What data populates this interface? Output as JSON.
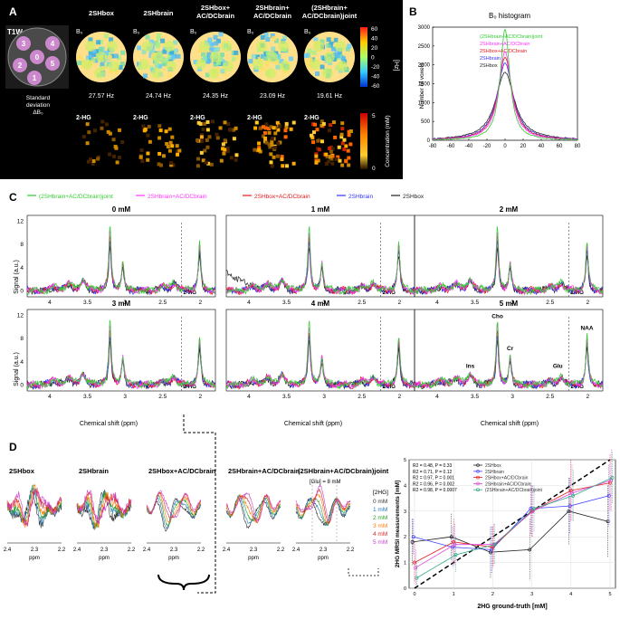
{
  "panel_labels": {
    "A": "A",
    "B": "B",
    "C": "C",
    "D": "D"
  },
  "panel_a": {
    "t1w_label": "T1W",
    "phantom_numbers": [
      "4",
      "3",
      "2",
      "0",
      "5",
      "1"
    ],
    "b0_symbol": "B₀",
    "methods": [
      "2SHbox",
      "2SHbrain",
      "2SHbox+ AC/DCbrain",
      "2SHbrain+ AC/DCbrain",
      "(2SHbrain+ AC/DCbrain)joint"
    ],
    "std_values": [
      "27.57 Hz",
      "24.74 Hz",
      "24.35 Hz",
      "23.09 Hz",
      "19.61 Hz"
    ],
    "std_label": [
      "Standard",
      "deviation",
      "ΔB₀"
    ],
    "hg_label": "2-HG",
    "colorbar1": {
      "ticks": [
        "60",
        "40",
        "20",
        "0",
        "-20",
        "-40",
        "-60"
      ],
      "unit": "[Hz]"
    },
    "colorbar2": {
      "ticks": [
        "5",
        "0"
      ],
      "label": "Concentration (mM)"
    }
  },
  "panel_c": {
    "legend": [
      "(2SHbrain+AC/DCbrain)joint",
      "2SHbrain+AC/DCbrain",
      "2SHbox+AC/DCbrain",
      "2SHbrain",
      "2SHbox"
    ],
    "ylabel": "Signal (a.u.)",
    "xlabel": "Chemical shift (ppm)",
    "subplot_titles": [
      "0 mM",
      "1 mM",
      "2 mM",
      "3 mM",
      "4 mM",
      "5 mM"
    ],
    "hg_marker": "2-HG",
    "peak_labels": {
      "cho": "Cho",
      "naa": "NAA",
      "cr": "Cr",
      "ins": "Ins",
      "glu": "Glu"
    }
  },
  "panel_d": {
    "titles": [
      "2SHbox",
      "2SHbrain",
      "2SHbox+AC/DCbrain",
      "2SHbrain+AC/DCbrain",
      "(2SHbrain+AC/DCbrain)joint"
    ],
    "xlabel": "ppm",
    "glu_label": "[Glu] = 8 mM",
    "hg_legend_title": "[2HG]",
    "hg_legend": [
      "0 mM",
      "1 mM",
      "2 mM",
      "3 mM",
      "4 mM",
      "5 mM"
    ],
    "hg_colors": [
      "#333333",
      "#1f77b4",
      "#2ca02c",
      "#ff7f0e",
      "#d62728",
      "#cc44cc"
    ]
  },
  "chart_data": [
    {
      "type": "line",
      "id": "panel_b",
      "title": "B₀ histogram",
      "xlabel": "",
      "ylabel": "Number of voxels",
      "xlim": [
        -80,
        80
      ],
      "ylim": [
        0,
        3000
      ],
      "xticks": [
        -80,
        -60,
        -40,
        -20,
        0,
        20,
        40,
        60,
        80
      ],
      "yticks": [
        0,
        500,
        1000,
        1500,
        2000,
        2500,
        3000
      ],
      "series": [
        {
          "name": "(2SHbrain+AC/DCbrain)joint",
          "color": "#33cc33",
          "peak": 2950,
          "width": 6
        },
        {
          "name": "2SHbrain+AC/DCbrain",
          "color": "#ff33ff",
          "peak": 2350,
          "width": 8
        },
        {
          "name": "2SHbox+AC/DCbrain",
          "color": "#e41a1c",
          "peak": 2200,
          "width": 9
        },
        {
          "name": "2SHbrain",
          "color": "#3333ff",
          "peak": 2050,
          "width": 10
        },
        {
          "name": "2SHbox",
          "color": "#222222",
          "peak": 1800,
          "width": 12
        }
      ],
      "legend": [
        "(2SHbrain+AC/DCbrain)joint",
        "2SHbrain+AC/DCbrain",
        "2SHbox+AC/DCbrain",
        "2SHbrain",
        "2SHbox"
      ]
    },
    {
      "type": "line",
      "id": "panel_c_spectra",
      "xlim": [
        4.3,
        1.8
      ],
      "ylim": [
        -1,
        13
      ],
      "xticks": [
        4,
        3.5,
        3,
        2.5,
        2
      ],
      "yticks": [
        0,
        4,
        8,
        12
      ],
      "hg_ppm": 2.25,
      "series_colors": [
        "#33cc33",
        "#ff33ff",
        "#e41a1c",
        "#3333ff",
        "#222222"
      ],
      "peaks_ppm": {
        "Cho": 3.2,
        "Cr": 3.03,
        "NAA": 2.01,
        "Ins": 3.56,
        "Glu": 2.35
      }
    },
    {
      "type": "line",
      "id": "panel_d_regression",
      "xlabel": "2HG ground-truth [mM]",
      "ylabel": "2HG MRSI measurements [mM]",
      "x": [
        0,
        1,
        2,
        3,
        4,
        5
      ],
      "xlim": [
        0,
        5
      ],
      "ylim": [
        0,
        5
      ],
      "xticks": [
        0,
        1,
        2,
        3,
        4,
        5
      ],
      "yticks": [
        0,
        1,
        2,
        3,
        4,
        5
      ],
      "identity_line": true,
      "series": [
        {
          "name": "2SHbox",
          "color": "#222222",
          "values": [
            1.8,
            2.0,
            1.4,
            1.5,
            3.0,
            2.6
          ],
          "error": [
            0.9,
            0.9,
            1.0,
            1.2,
            1.3,
            1.4
          ]
        },
        {
          "name": "2SHbrain",
          "color": "#4444ff",
          "values": [
            2.0,
            1.6,
            1.5,
            3.1,
            3.2,
            3.6
          ],
          "error": [
            0.7,
            0.8,
            0.9,
            1.0,
            1.1,
            1.2
          ]
        },
        {
          "name": "2SHbox+AC/DCbrain",
          "color": "#e41a1c",
          "values": [
            1.0,
            1.8,
            1.6,
            3.0,
            3.8,
            4.1
          ],
          "error": [
            0.8,
            0.9,
            0.8,
            1.0,
            1.2,
            1.1
          ]
        },
        {
          "name": "2SHbrain+AC/DCbrain",
          "color": "#dd44dd",
          "values": [
            0.8,
            1.7,
            1.7,
            3.0,
            3.7,
            4.2
          ],
          "error": [
            0.7,
            0.8,
            0.8,
            1.0,
            1.1,
            1.2
          ]
        },
        {
          "name": "(2SHbrain+AC/DCbrain)joint",
          "color": "#33aa88",
          "values": [
            0.4,
            1.3,
            1.7,
            3.1,
            3.6,
            4.3
          ],
          "error": [
            0.6,
            0.7,
            0.8,
            0.9,
            1.0,
            1.0
          ]
        }
      ],
      "stats": [
        "R2 = 0.48, P = 0.33",
        "R2 = 0.71, P = 0.12",
        "R2 = 0.97, P = 0.001",
        "R2 = 0.96, P = 0.002",
        "R2 = 0.98, P = 0.0007"
      ]
    }
  ]
}
